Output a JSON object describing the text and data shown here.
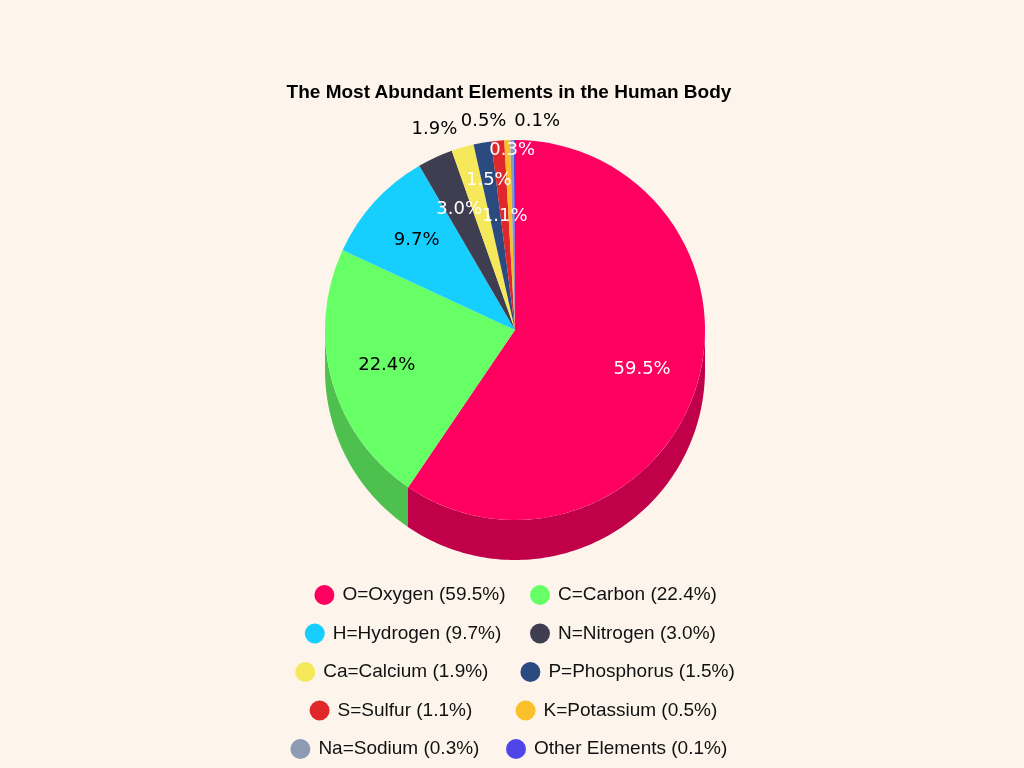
{
  "chart_data": {
    "type": "pie",
    "title": "The Most Abundant Elements in the Human Body",
    "categories": [
      "O=Oxygen (59.5%)",
      "C=Carbon (22.4%)",
      "H=Hydrogen (9.7%)",
      "N=Nitrogen (3.0%)",
      "Ca=Calcium (1.9%)",
      "P=Phosphorus (1.5%)",
      "S=Sulfur (1.1%)",
      "K=Potassium (0.5%)",
      "Na=Sodium (0.3%)",
      "Other Elements (0.1%)"
    ],
    "values": [
      59.5,
      22.4,
      9.7,
      3.0,
      1.9,
      1.5,
      1.1,
      0.5,
      0.3,
      0.1
    ],
    "value_labels": [
      "59.5%",
      "22.4%",
      "9.7%",
      "3.0%",
      "1.9%",
      "1.5%",
      "1.1%",
      "0.5%",
      "0.3%",
      "0.1%"
    ],
    "colors": [
      "#ff0060",
      "#66ff66",
      "#17cfff",
      "#3f3d50",
      "#f5e85a",
      "#2b4a80",
      "#e0282c",
      "#fbbf2a",
      "#8e9bb5",
      "#5046e8"
    ],
    "legend": "bottom"
  }
}
